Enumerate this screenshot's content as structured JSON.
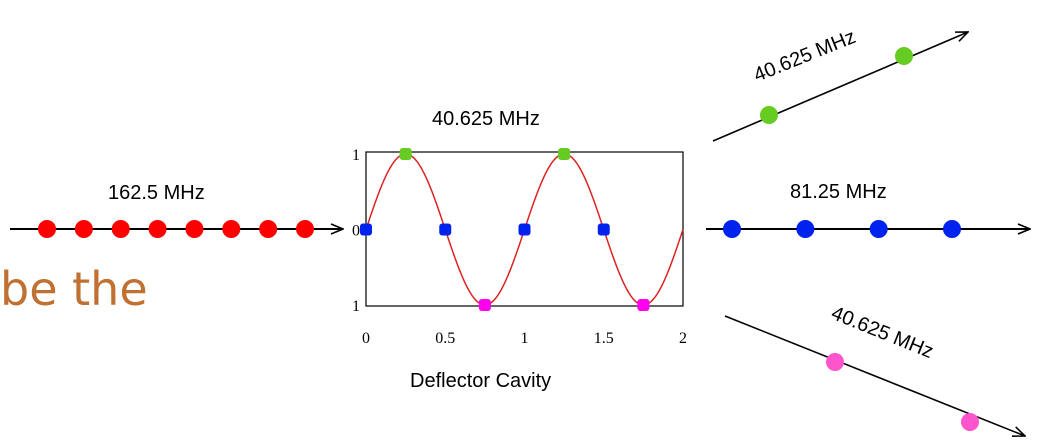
{
  "labels": {
    "input_freq": "162.5 MHz",
    "cavity_freq": "40.625 MHz",
    "upper_freq": "40.625 MHz",
    "middle_freq": "81.25 MHz",
    "lower_freq": "40.625 MHz",
    "cavity_caption": "Deflector Cavity",
    "fragment_text": "be the"
  },
  "colors": {
    "input_bunch": "#ff0000",
    "upper_bunch": "#66cc22",
    "middle_bunch": "#0022ee",
    "lower_bunch": "#ff55cc",
    "sine": "#dd2222",
    "fragment": "#c07030"
  },
  "chart_data": {
    "type": "line",
    "title": "",
    "xlabel": "",
    "ylabel": "",
    "xlim": [
      0,
      2
    ],
    "ylim": [
      -1,
      1
    ],
    "x_ticks": [
      "0",
      "0.5",
      "1",
      "1.5",
      "2"
    ],
    "y_ticks": [
      "1",
      "0",
      "1"
    ],
    "series": [
      {
        "function": "sin(2*pi*x)",
        "x_range": [
          0,
          2
        ]
      }
    ],
    "markers": [
      {
        "x": 0.25,
        "y": 1,
        "color": "#66cc22"
      },
      {
        "x": 1.25,
        "y": 1,
        "color": "#66cc22"
      },
      {
        "x": 0.0,
        "y": 0,
        "color": "#0022ee"
      },
      {
        "x": 0.5,
        "y": 0,
        "color": "#0022ee"
      },
      {
        "x": 1.0,
        "y": 0,
        "color": "#0022ee"
      },
      {
        "x": 1.5,
        "y": 0,
        "color": "#0022ee"
      },
      {
        "x": 0.75,
        "y": -1,
        "color": "#ff00ee"
      },
      {
        "x": 1.75,
        "y": -1,
        "color": "#ff00ee"
      }
    ]
  },
  "bunch_counts": {
    "input": 8,
    "upper": 2,
    "middle": 4,
    "lower": 2
  }
}
